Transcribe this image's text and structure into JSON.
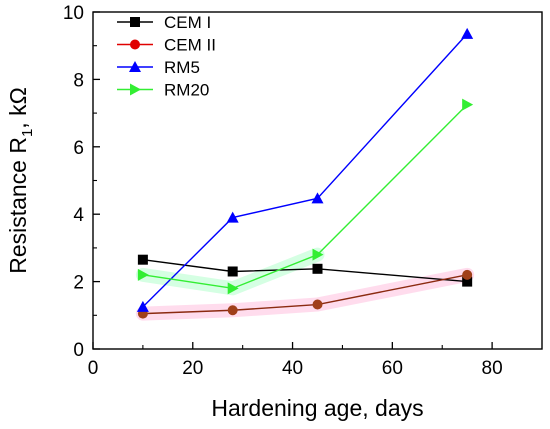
{
  "chart_data": {
    "type": "line",
    "xlabel": "Hardening age, days",
    "ylabel_main": "Resistance R",
    "ylabel_sub": "1",
    "ylabel_tail": ", kΩ",
    "xlim": [
      0,
      90
    ],
    "ylim": [
      0,
      10
    ],
    "x_ticks": [
      "0",
      "20",
      "40",
      "60",
      "80"
    ],
    "y_ticks": [
      "0",
      "2",
      "4",
      "6",
      "8",
      "10"
    ],
    "grid": false,
    "legend_position": "top-left",
    "series": [
      {
        "name": "CEM I",
        "color": "#000000",
        "marker": "square",
        "x": [
          10,
          28,
          45,
          75
        ],
        "y": [
          2.65,
          2.3,
          2.38,
          2.0
        ]
      },
      {
        "name": "CEM II",
        "color": "#e00000",
        "marker": "circle",
        "x": [
          10,
          28,
          45,
          75
        ],
        "y": [
          1.05,
          1.15,
          1.32,
          2.2
        ]
      },
      {
        "name": "RM5",
        "color": "#0000ff",
        "marker": "triangle-up",
        "x": [
          10,
          28,
          45,
          75
        ],
        "y": [
          1.25,
          3.9,
          4.47,
          9.35
        ]
      },
      {
        "name": "RM20",
        "color": "#33ee33",
        "marker": "triangle-right",
        "x": [
          10,
          28,
          45,
          75
        ],
        "y": [
          2.2,
          1.8,
          2.8,
          7.25
        ]
      }
    ]
  }
}
